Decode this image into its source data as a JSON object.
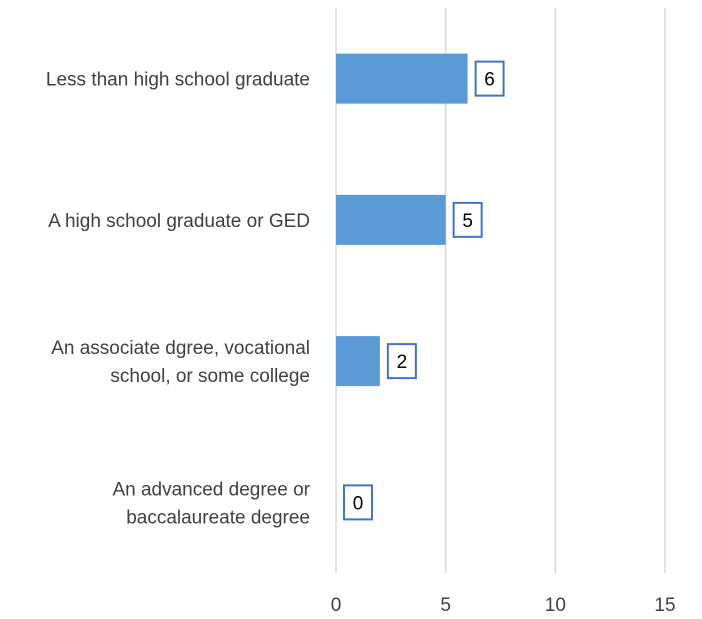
{
  "chart_data": {
    "type": "bar",
    "orientation": "horizontal",
    "categories": [
      [
        "Less than high school graduate"
      ],
      [
        "A high school graduate or GED"
      ],
      [
        "An associate dgree, vocational",
        "school, or some college"
      ],
      [
        "An advanced degree or",
        "baccalaureate degree"
      ]
    ],
    "values": [
      6,
      5,
      2,
      0
    ],
    "data_labels": [
      "6",
      "5",
      "2",
      "0"
    ],
    "xlim": [
      0,
      15
    ],
    "x_ticks": [
      0,
      5,
      10,
      15
    ],
    "x_tick_labels": [
      "0",
      "5",
      "10",
      "15"
    ],
    "title": "",
    "xlabel": "",
    "ylabel": "",
    "grid": "vertical",
    "legend": "none",
    "colors": {
      "bar": "#5b9bd5",
      "grid": "#d9d9d9",
      "label_border": "#4472c4",
      "text": "#404040"
    }
  }
}
